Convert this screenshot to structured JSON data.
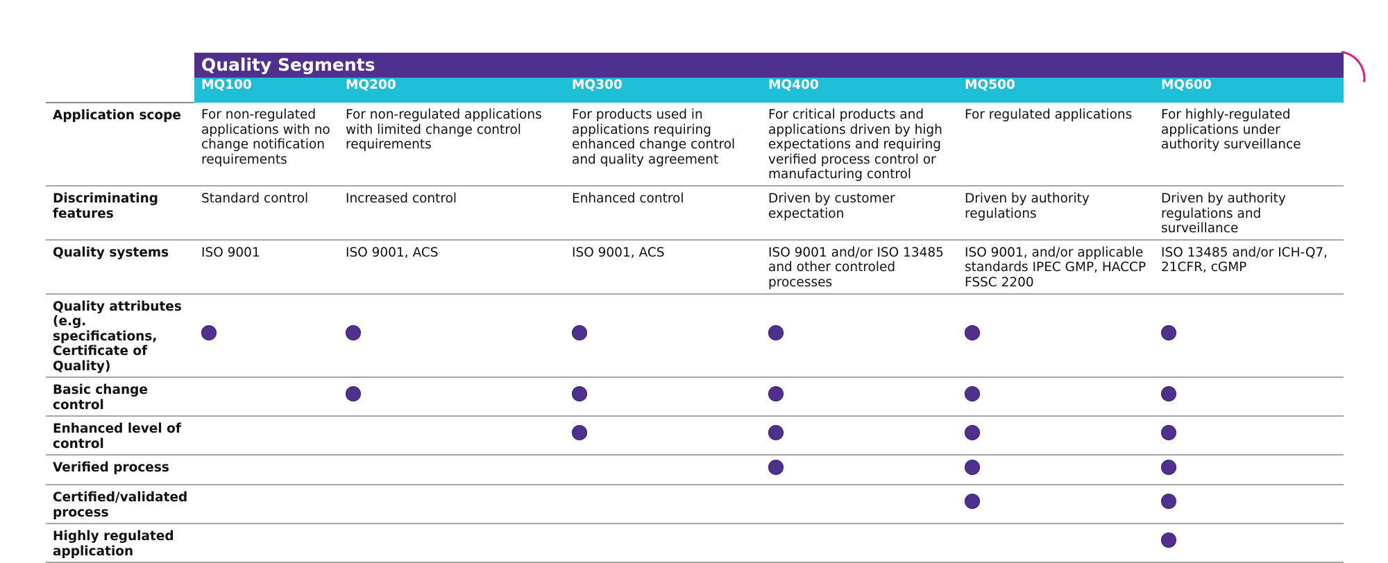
{
  "title": "Quality Segments",
  "colors": {
    "purple": "#50308e",
    "cyan": "#1ebfd6",
    "accent_arc": "#e21a8a",
    "dot": "#50308e"
  },
  "columns": [
    "MQ100",
    "MQ200",
    "MQ300",
    "MQ400",
    "MQ500",
    "MQ600"
  ],
  "text_rows": [
    {
      "label": "Application scope",
      "cells": [
        "For non-regulated applications with no change notification requirements",
        "For non-regulated applications with limited change control requirements",
        "For products used in applications requiring enhanced change control and quality agreement",
        "For critical products and applications driven by high expectations and requiring verified process control or manufacturing control",
        "For regulated applications",
        "For highly-regulated applications under authority surveillance"
      ]
    },
    {
      "label": "Discriminating features",
      "cells": [
        "Standard control",
        "Increased control",
        "Enhanced control",
        "Driven by customer expectation",
        "Driven by authority regulations",
        "Driven by authority regulations and surveillance"
      ]
    },
    {
      "label": "Quality systems",
      "cells": [
        "ISO 9001",
        "ISO 9001, ACS",
        "ISO 9001, ACS",
        "ISO 9001 and/or ISO 13485 and other controled processes",
        "ISO 9001, and/or applicable standards IPEC GMP, HACCP FSSC 2200",
        "ISO 13485 and/or ICH-Q7, 21CFR, cGMP"
      ]
    }
  ],
  "marker_rows": [
    {
      "label": "Quality attributes (e.g. specifications, Certificate of Quality)",
      "marks": [
        true,
        true,
        true,
        true,
        true,
        true
      ]
    },
    {
      "label": "Basic change control",
      "marks": [
        false,
        true,
        true,
        true,
        true,
        true
      ]
    },
    {
      "label": "Enhanced level of control",
      "marks": [
        false,
        false,
        true,
        true,
        true,
        true
      ]
    },
    {
      "label": "Verified process",
      "marks": [
        false,
        false,
        false,
        true,
        true,
        true
      ]
    },
    {
      "label": "Certified/validated process",
      "marks": [
        false,
        false,
        false,
        false,
        true,
        true
      ]
    },
    {
      "label": "Highly regulated application",
      "marks": [
        false,
        false,
        false,
        false,
        false,
        true
      ]
    }
  ]
}
